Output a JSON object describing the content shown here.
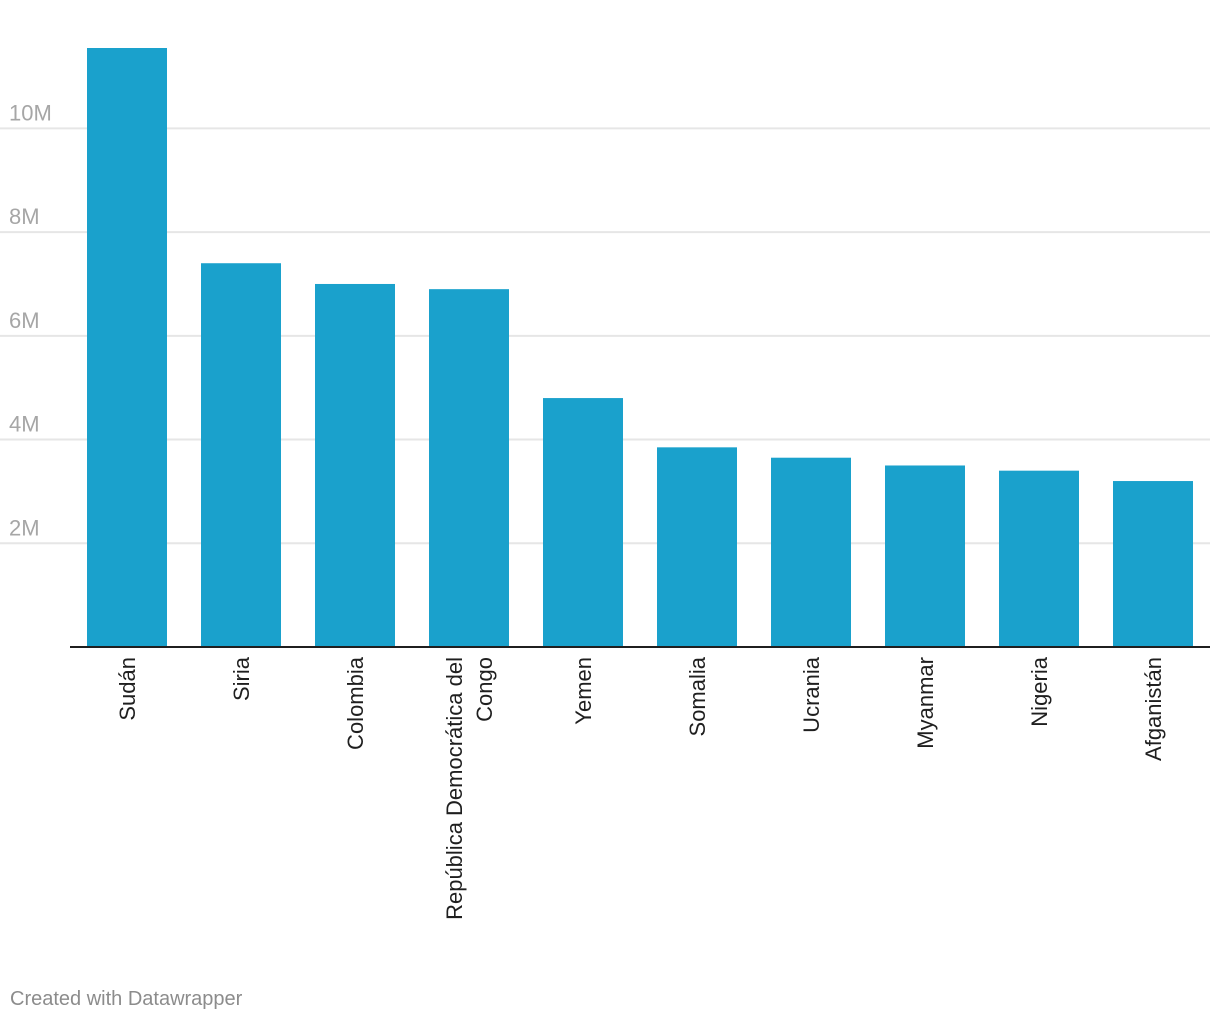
{
  "chart_data": {
    "type": "bar",
    "categories": [
      "Sudán",
      "Siria",
      "Colombia",
      "República Democrática del Congo",
      "Yemen",
      "Somalia",
      "Ucrania",
      "Myanmar",
      "Nigeria",
      "Afganistán"
    ],
    "values": [
      11550000,
      7400000,
      7000000,
      6900000,
      4800000,
      3850000,
      3650000,
      3500000,
      3400000,
      3200000
    ],
    "title": "",
    "xlabel": "",
    "ylabel": "",
    "ylim": [
      0,
      11550000
    ],
    "yticks": [
      2000000,
      4000000,
      6000000,
      8000000,
      10000000
    ],
    "ytick_labels": [
      "2M",
      "4M",
      "6M",
      "8M",
      "10M"
    ],
    "grid": true,
    "bar_color": "#1aa1cc",
    "grid_color": "#e6e6e6",
    "axis_color": "#1f1f1f"
  },
  "footer": {
    "credit": "Created with Datawrapper"
  }
}
